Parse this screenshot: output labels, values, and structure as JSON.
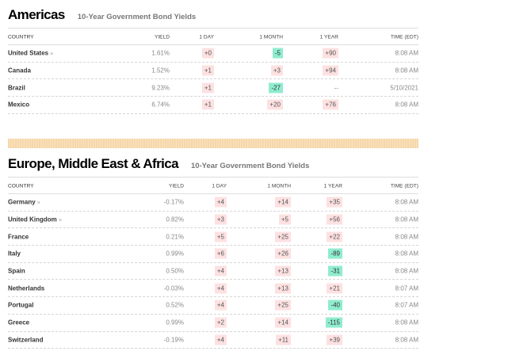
{
  "headers": {
    "country": "COUNTRY",
    "yield": "YIELD",
    "day": "1 DAY",
    "month": "1 MONTH",
    "year": "1 YEAR",
    "time": "TIME (EDT)"
  },
  "americas": {
    "title": "Americas",
    "subtitle": "10-Year Government Bond Yields",
    "rows": [
      {
        "country": "United States",
        "link": "»",
        "yield": "1.61%",
        "day": "+0",
        "month": "-5",
        "year": "+90",
        "time": "8:08 AM"
      },
      {
        "country": "Canada",
        "yield": "1.52%",
        "day": "+1",
        "month": "+3",
        "year": "+94",
        "time": "8:08 AM"
      },
      {
        "country": "Brazil",
        "yield": "9.23%",
        "day": "+1",
        "month": "-27",
        "year": "--",
        "time": "5/10/2021"
      },
      {
        "country": "Mexico",
        "yield": "6.74%",
        "day": "+1",
        "month": "+20",
        "year": "+76",
        "time": "8:08 AM"
      }
    ]
  },
  "emea": {
    "title": "Europe, Middle East & Africa",
    "subtitle": "10-Year Government Bond Yields",
    "rows": [
      {
        "country": "Germany",
        "link": "»",
        "yield": "-0.17%",
        "day": "+4",
        "month": "+14",
        "year": "+35",
        "time": "8:08 AM"
      },
      {
        "country": "United Kingdom",
        "link": "»",
        "yield": "0.82%",
        "day": "+3",
        "month": "+5",
        "year": "+56",
        "time": "8:08 AM"
      },
      {
        "country": "France",
        "yield": "0.21%",
        "day": "+5",
        "month": "+25",
        "year": "+22",
        "time": "8:08 AM"
      },
      {
        "country": "Italy",
        "yield": "0.99%",
        "day": "+6",
        "month": "+26",
        "year": "-89",
        "time": "8:08 AM"
      },
      {
        "country": "Spain",
        "yield": "0.50%",
        "day": "+4",
        "month": "+13",
        "year": "-31",
        "time": "8:08 AM"
      },
      {
        "country": "Netherlands",
        "yield": "-0.03%",
        "day": "+4",
        "month": "+13",
        "year": "+21",
        "time": "8:07 AM"
      },
      {
        "country": "Portugal",
        "yield": "0.52%",
        "day": "+4",
        "month": "+25",
        "year": "-40",
        "time": "8:07 AM"
      },
      {
        "country": "Greece",
        "yield": "0.99%",
        "day": "+2",
        "month": "+14",
        "year": "-115",
        "time": "8:08 AM"
      },
      {
        "country": "Switzerland",
        "yield": "-0.19%",
        "day": "+4",
        "month": "+11",
        "year": "+39",
        "time": "8:08 AM"
      }
    ]
  },
  "colors": {
    "positive": "#fde1e1",
    "negative": "#8feccf",
    "stripe": "#f6d7a8"
  }
}
